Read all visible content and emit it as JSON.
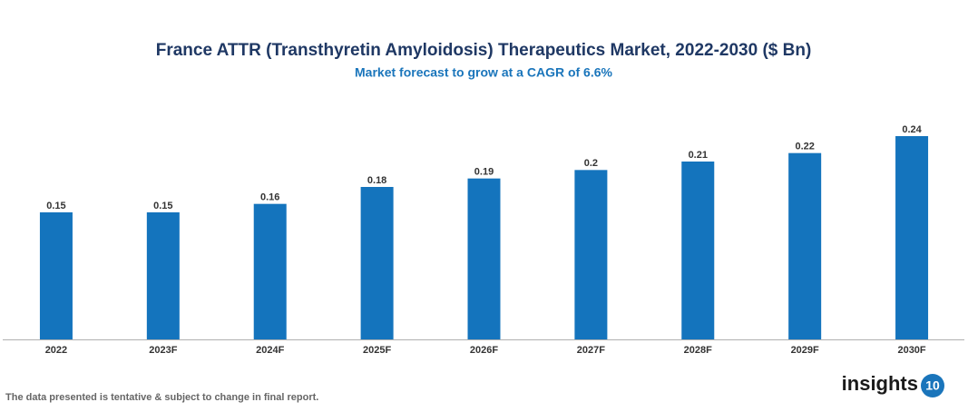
{
  "chart_data": {
    "type": "bar",
    "title": "France ATTR (Transthyretin Amyloidosis) Therapeutics Market, 2022-2030 ($ Bn)",
    "subtitle": "Market forecast to grow at a CAGR of 6.6%",
    "categories": [
      "2022",
      "2023F",
      "2024F",
      "2025F",
      "2026F",
      "2027F",
      "2028F",
      "2029F",
      "2030F"
    ],
    "values": [
      0.15,
      0.15,
      0.16,
      0.18,
      0.19,
      0.2,
      0.21,
      0.22,
      0.24
    ],
    "color": "#1474bd"
  },
  "footnote": "The data presented is tentative & subject to change in final report.",
  "logo": {
    "text": "insights",
    "badge": "10"
  }
}
